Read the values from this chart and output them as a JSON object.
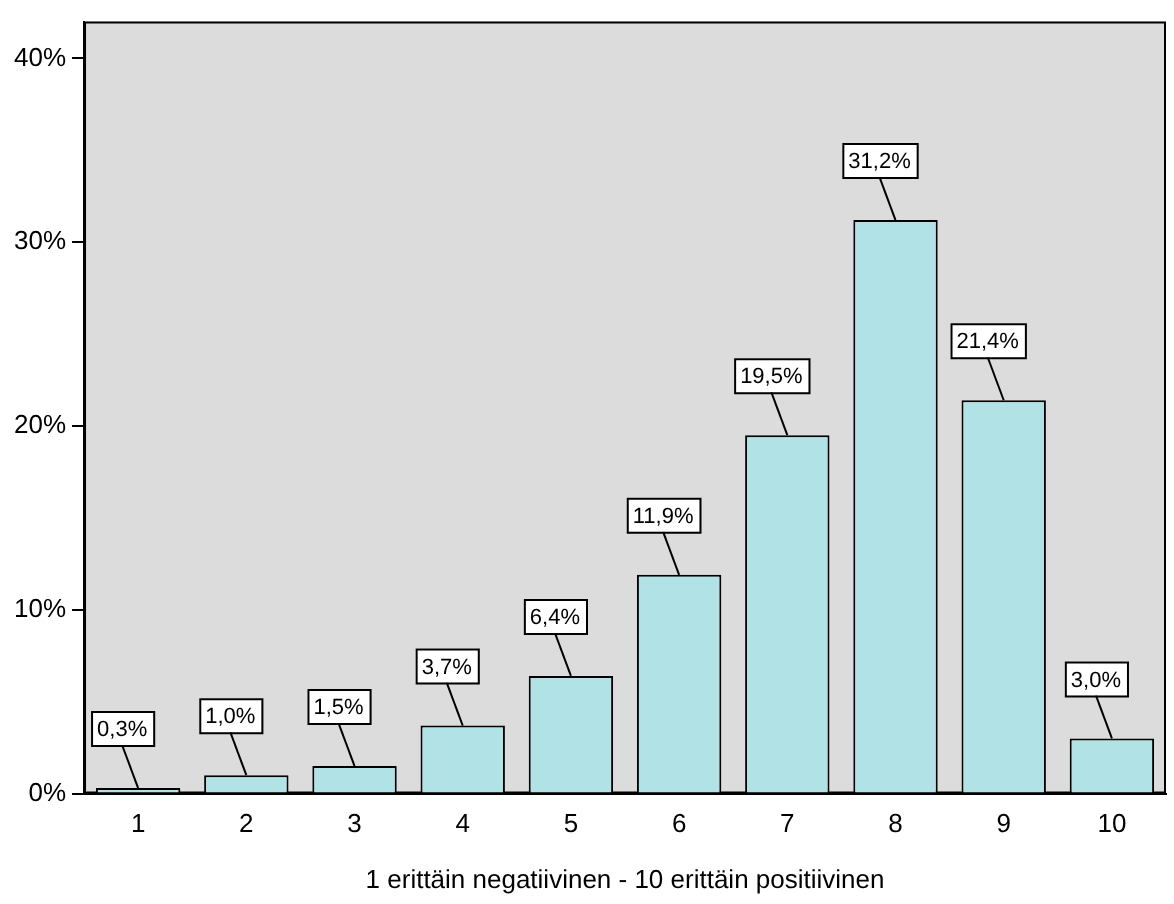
{
  "chart_data": {
    "type": "bar",
    "xlabel": "1 erittäin negatiivinen - 10 erittäin positiivinen",
    "categories": [
      "1",
      "2",
      "3",
      "4",
      "5",
      "6",
      "7",
      "8",
      "9",
      "10"
    ],
    "values": [
      0.3,
      1.0,
      1.5,
      3.7,
      6.4,
      11.9,
      19.5,
      31.2,
      21.4,
      3.0
    ],
    "value_labels": [
      "0,3%",
      "1,0%",
      "1,5%",
      "3,7%",
      "6,4%",
      "11,9%",
      "19,5%",
      "31,2%",
      "21,4%",
      "3,0%"
    ],
    "color": "#b0e2e6",
    "ylim": [
      0,
      42
    ],
    "yticks": [
      {
        "value": 0,
        "label": "0%"
      },
      {
        "value": 10,
        "label": "10%"
      },
      {
        "value": 20,
        "label": "20%"
      },
      {
        "value": 30,
        "label": "30%"
      },
      {
        "value": 40,
        "label": "40%"
      }
    ],
    "grid": false,
    "legend": false
  }
}
